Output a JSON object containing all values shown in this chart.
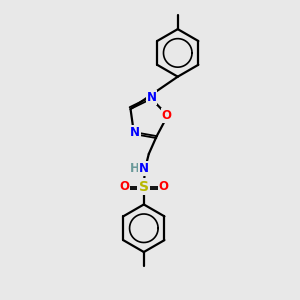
{
  "background_color": "#e8e8e8",
  "atom_colors": {
    "C": "#000000",
    "N": "#0000ff",
    "O": "#ff0000",
    "S": "#b8b800",
    "H": "#6a9a9a"
  },
  "bond_color": "#000000",
  "figsize": [
    3.0,
    3.0
  ],
  "dpi": 100
}
